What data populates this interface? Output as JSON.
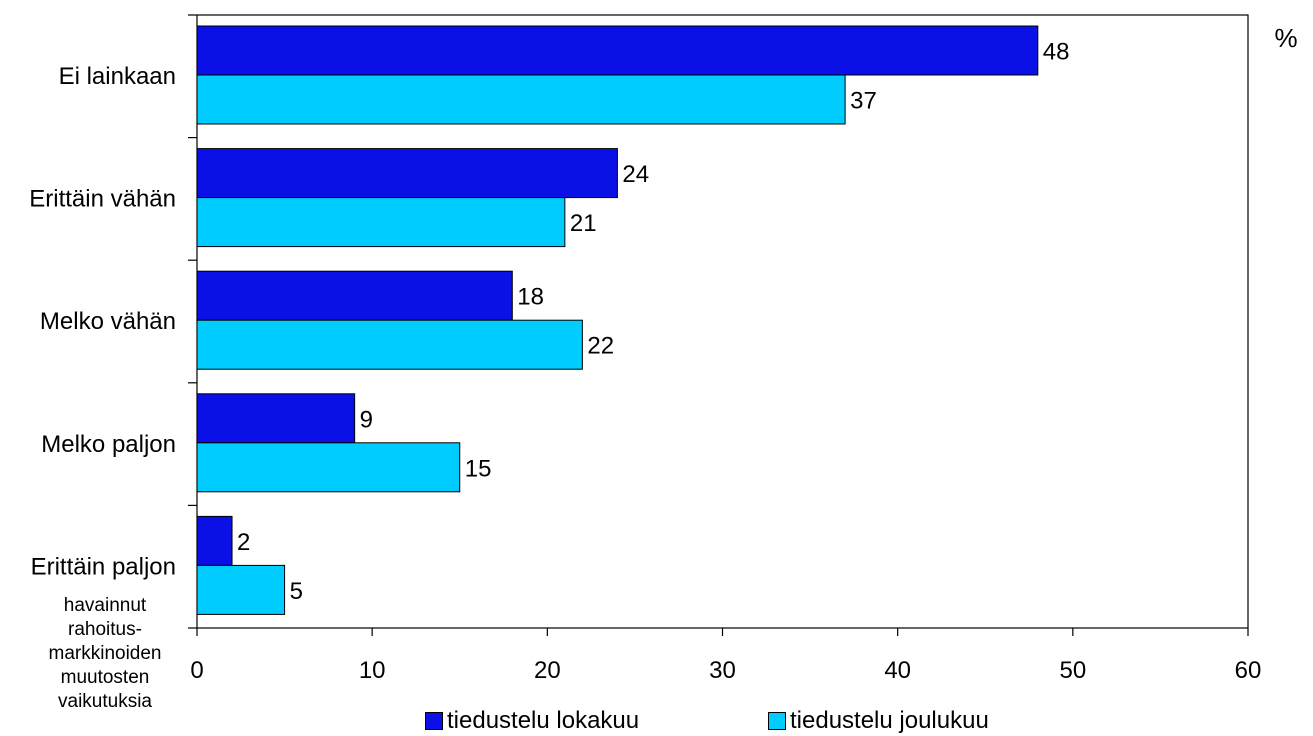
{
  "chart_data": {
    "type": "bar",
    "orientation": "horizontal",
    "unit_label": "%",
    "categories": [
      "Ei lainkaan",
      "Erittäin vähän",
      "Melko vähän",
      "Melko paljon",
      "Erittäin paljon"
    ],
    "series": [
      {
        "name": "tiedustelu lokakuu",
        "color": "#0a10e6",
        "values": [
          48,
          24,
          18,
          9,
          2
        ]
      },
      {
        "name": "tiedustelu joulukuu",
        "color": "#00ccff",
        "values": [
          37,
          21,
          22,
          15,
          5
        ]
      }
    ],
    "xlim": [
      0,
      60
    ],
    "xticks": [
      "0",
      "10",
      "20",
      "30",
      "40",
      "50",
      "60"
    ],
    "ylabel_lines": [
      "havainnut",
      "rahoitus-",
      "markkinoiden",
      "muutosten",
      "vaikutuksia"
    ],
    "grid": false,
    "legend_position": "bottom"
  }
}
